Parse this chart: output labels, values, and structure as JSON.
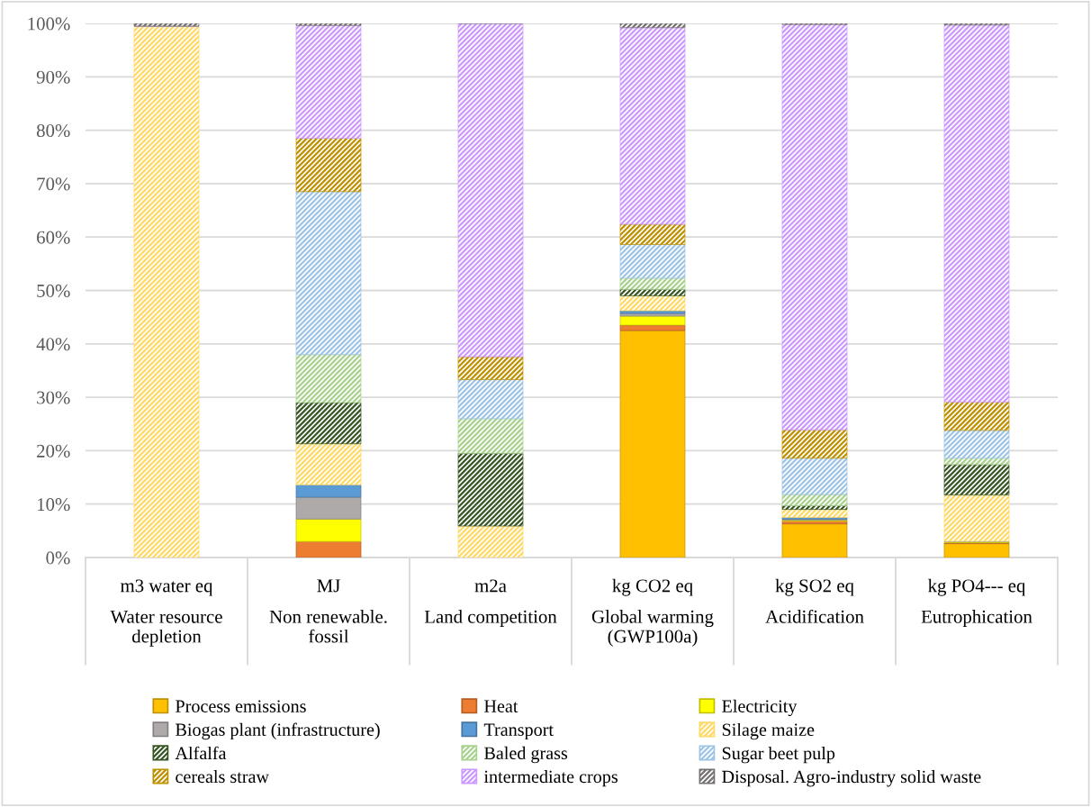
{
  "chart_data": {
    "type": "bar",
    "stacked": true,
    "categories": [
      "m3 water eq\nWater resource\ndepletion",
      "MJ\nNon renewable.\nfossil",
      "m2a\nLand competition",
      "kg CO2 eq\nGlobal warming\n(GWP100a)",
      "kg SO2 eq\nAcidification",
      "kg PO4--- eq\nEutrophication"
    ],
    "series": [
      {
        "name": "Process emissions",
        "color": "#ffc000",
        "values": [
          0,
          0,
          0,
          42.5,
          6.3,
          2.6
        ]
      },
      {
        "name": "Heat",
        "color": "#ed7d31",
        "values": [
          0,
          3.0,
          0,
          1.0,
          0.5,
          0.2
        ]
      },
      {
        "name": "Electricity",
        "color": "#ffff00",
        "values": [
          0,
          4.2,
          0,
          1.7,
          0.2,
          0.2
        ]
      },
      {
        "name": "Biogas plant (infrastructure)",
        "color": "#aeaaaa",
        "values": [
          0,
          4.1,
          0,
          0.5,
          0.2,
          0
        ]
      },
      {
        "name": "Transport",
        "color": "#5b9bd5",
        "values": [
          0,
          2.3,
          0,
          0.5,
          0.3,
          0
        ]
      },
      {
        "name": "Silage maize",
        "color": "#ffd966",
        "values": [
          99.5,
          7.7,
          5.9,
          2.8,
          1.5,
          8.7
        ]
      },
      {
        "name": "Alfalfa",
        "color": "#375623",
        "values": [
          0,
          7.7,
          13.6,
          1.2,
          0.7,
          5.7
        ]
      },
      {
        "name": "Baled grass",
        "color": "#a9d18e",
        "values": [
          0,
          9.0,
          6.5,
          2.1,
          2.1,
          1.2
        ]
      },
      {
        "name": "Sugar beet pulp",
        "color": "#9dc3e6",
        "values": [
          0,
          30.5,
          7.3,
          6.3,
          6.8,
          5.2
        ]
      },
      {
        "name": "cereals straw",
        "color": "#bf9000",
        "values": [
          0,
          10.0,
          4.3,
          3.8,
          5.3,
          5.3
        ]
      },
      {
        "name": "intermediate crops",
        "color": "#cc99ff",
        "values": [
          0,
          21.1,
          62.4,
          36.8,
          75.9,
          70.6
        ]
      },
      {
        "name": "Disposal. Agro-industry solid waste",
        "color": "#767171",
        "values": [
          0.5,
          0.4,
          0,
          0.8,
          0.2,
          0.3
        ]
      }
    ],
    "ylim": [
      0,
      100
    ],
    "yticks": [
      {
        "value": 0,
        "label": "0%"
      },
      {
        "value": 10,
        "label": "10%"
      },
      {
        "value": 20,
        "label": "20%"
      },
      {
        "value": 30,
        "label": "30%"
      },
      {
        "value": 40,
        "label": "40%"
      },
      {
        "value": 50,
        "label": "50%"
      },
      {
        "value": 60,
        "label": "60%"
      },
      {
        "value": 70,
        "label": "70%"
      },
      {
        "value": 80,
        "label": "80%"
      },
      {
        "value": 90,
        "label": "90%"
      },
      {
        "value": 100,
        "label": "100%"
      }
    ],
    "grid": "y",
    "legend": "bottom"
  }
}
